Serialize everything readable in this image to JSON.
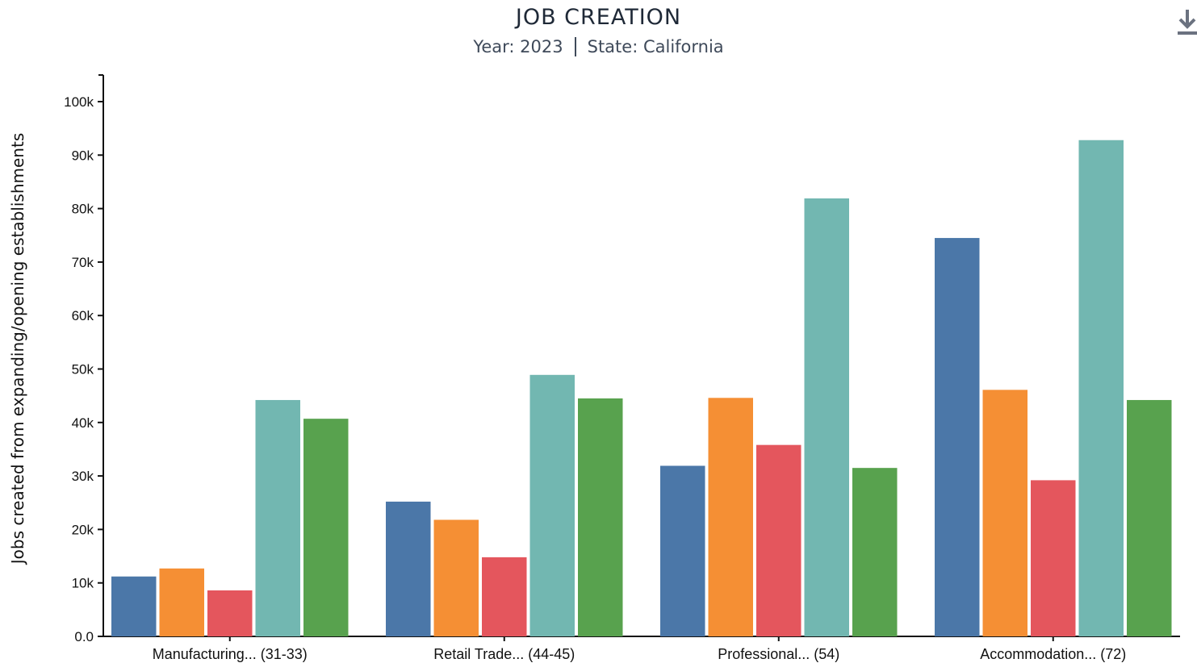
{
  "header": {
    "title": "JOB CREATION",
    "year_text": "Year: 2023",
    "state_text": "State: California"
  },
  "toolbar": {
    "download_icon": "download-icon"
  },
  "chart_data": {
    "type": "bar",
    "title": "JOB CREATION",
    "subtitle": "Year: 2023 | State: California",
    "xlabel": "",
    "ylabel": "Jobs created from expanding/opening establishments",
    "ylim": [
      0,
      105000
    ],
    "yticks": [
      0,
      10000,
      20000,
      30000,
      40000,
      50000,
      60000,
      70000,
      80000,
      90000,
      100000
    ],
    "ytick_labels": [
      "0.0",
      "10k",
      "20k",
      "30k",
      "40k",
      "50k",
      "60k",
      "70k",
      "80k",
      "90k",
      "100k"
    ],
    "categories": [
      "Manufacturing... (31-33)",
      "Retail Trade... (44-45)",
      "Professional... (54)",
      "Accommodation... (72)"
    ],
    "grid": false,
    "legend": "none",
    "series": [
      {
        "color": "#4b77a8",
        "values": [
          11200,
          25200,
          31900,
          74500
        ]
      },
      {
        "color": "#f58f34",
        "values": [
          12700,
          21800,
          44600,
          46100
        ]
      },
      {
        "color": "#e4565d",
        "values": [
          8600,
          14800,
          35800,
          29200
        ]
      },
      {
        "color": "#72b7b1",
        "values": [
          44200,
          48900,
          81900,
          92800
        ]
      },
      {
        "color": "#58a24e",
        "values": [
          40700,
          44500,
          31500,
          44200
        ]
      }
    ]
  }
}
